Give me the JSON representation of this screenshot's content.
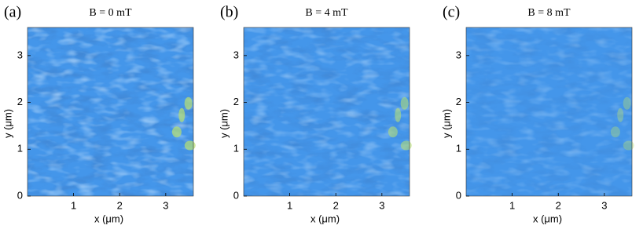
{
  "chart_data": [
    {
      "type": "image",
      "panel_label": "(a)",
      "title": "B = 0 mT",
      "xlabel": "x (μm)",
      "ylabel": "y (μm)",
      "xlim": [
        0,
        3.6
      ],
      "ylim": [
        0,
        3.6
      ],
      "xticks": [
        1,
        2,
        3
      ],
      "yticks": [
        0,
        1,
        2,
        3
      ]
    },
    {
      "type": "image",
      "panel_label": "(b)",
      "title": "B = 4 mT",
      "xlabel": "x (μm)",
      "ylabel": "y (μm)",
      "xlim": [
        0,
        3.6
      ],
      "ylim": [
        0,
        3.6
      ],
      "xticks": [
        1,
        2,
        3
      ],
      "yticks": [
        0,
        1,
        2,
        3
      ]
    },
    {
      "type": "image",
      "panel_label": "(c)",
      "title": "B = 8 mT",
      "xlabel": "x (μm)",
      "ylabel": "y (μm)",
      "xlim": [
        0,
        3.6
      ],
      "ylim": [
        0,
        3.6
      ],
      "xticks": [
        1,
        2,
        3
      ],
      "yticks": [
        0,
        1,
        2,
        3
      ]
    }
  ]
}
